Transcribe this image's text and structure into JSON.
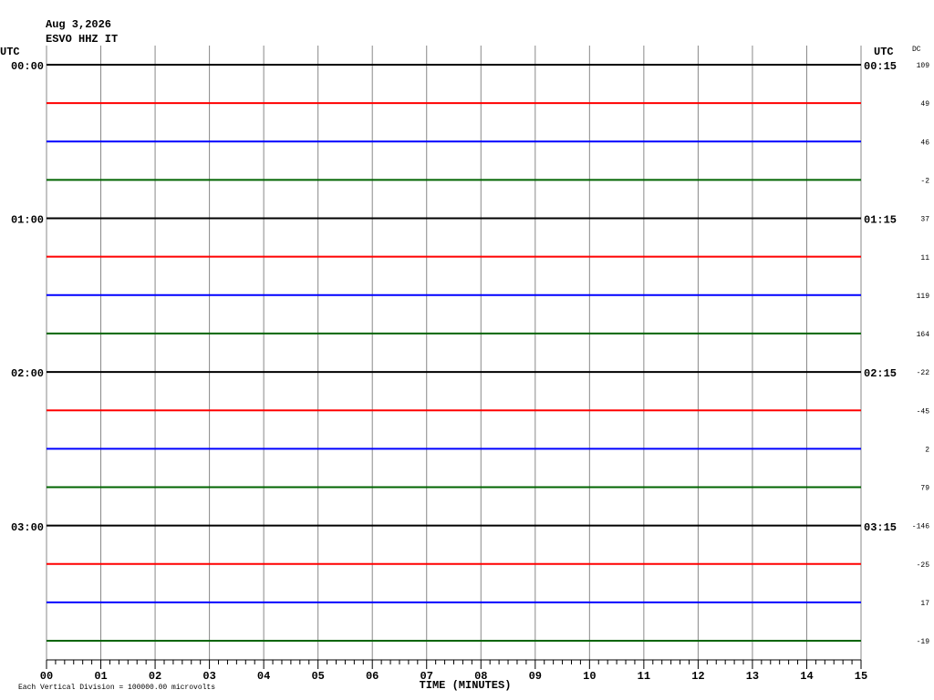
{
  "chart_data": {
    "type": "helicorder",
    "title": "Aug 3,2026",
    "subtitle": "ESVO HHZ IT",
    "left_axis_title": "UTC",
    "right_axis_title": "UTC",
    "dc_title": "DC",
    "xlabel": "TIME (MINUTES)",
    "footnote": "Each Vertical Division = 100000.00 microvolts",
    "xlim": [
      0,
      15
    ],
    "xticks": [
      {
        "value": 0,
        "label": "00"
      },
      {
        "value": 1,
        "label": "01"
      },
      {
        "value": 2,
        "label": "02"
      },
      {
        "value": 3,
        "label": "03"
      },
      {
        "value": 4,
        "label": "04"
      },
      {
        "value": 5,
        "label": "05"
      },
      {
        "value": 6,
        "label": "06"
      },
      {
        "value": 7,
        "label": "07"
      },
      {
        "value": 8,
        "label": "08"
      },
      {
        "value": 9,
        "label": "09"
      },
      10,
      11,
      12,
      13,
      14,
      15
    ],
    "grid": true,
    "rows": [
      {
        "left_label": "00:00",
        "right_label": "00:15",
        "dc": 109,
        "color": "#000000"
      },
      {
        "dc": 49,
        "color": "#ff0000"
      },
      {
        "dc": 46,
        "color": "#0000ff"
      },
      {
        "dc": -2,
        "color": "#006400"
      },
      {
        "left_label": "01:00",
        "right_label": "01:15",
        "dc": 37,
        "color": "#000000"
      },
      {
        "dc": 11,
        "color": "#ff0000"
      },
      {
        "dc": 119,
        "color": "#0000ff"
      },
      {
        "dc": 164,
        "color": "#006400"
      },
      {
        "left_label": "02:00",
        "right_label": "02:15",
        "dc": -22,
        "color": "#000000"
      },
      {
        "dc": -45,
        "color": "#ff0000"
      },
      {
        "dc": 2,
        "color": "#0000ff"
      },
      {
        "dc": 79,
        "color": "#006400"
      },
      {
        "left_label": "03:00",
        "right_label": "03:15",
        "dc": -146,
        "color": "#000000"
      },
      {
        "dc": -25,
        "color": "#ff0000"
      },
      {
        "dc": 17,
        "color": "#0000ff"
      },
      {
        "dc": -19,
        "color": "#006400"
      }
    ]
  }
}
